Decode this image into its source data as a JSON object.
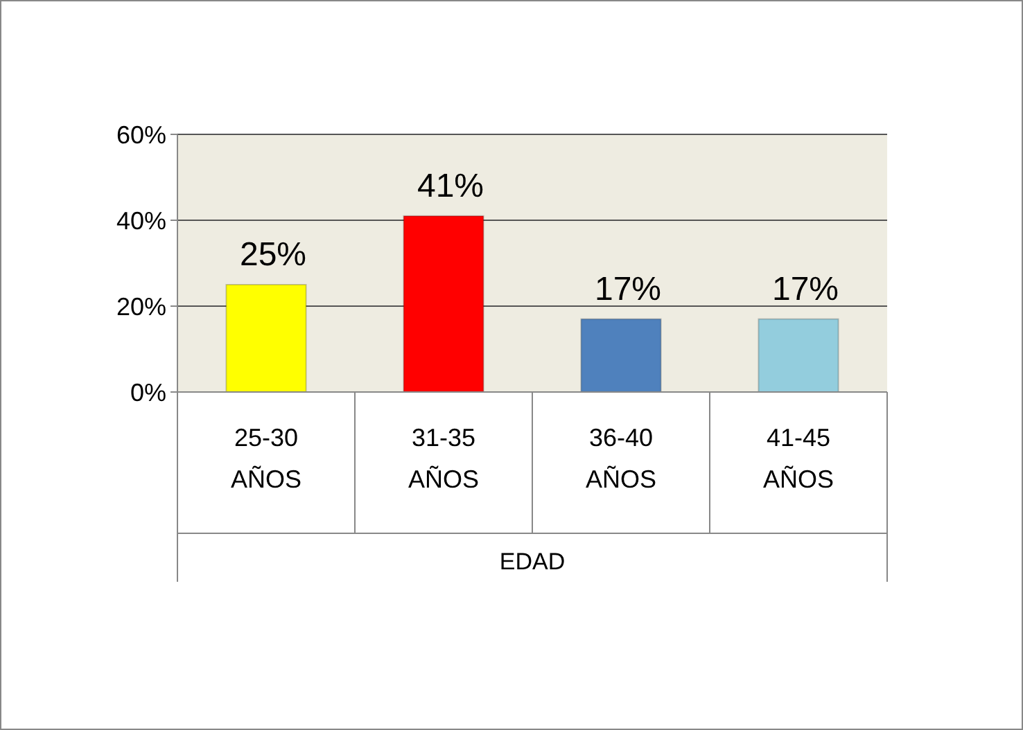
{
  "chart_data": {
    "type": "bar",
    "xlabel": "EDAD",
    "categories": [
      "25-30 AÑOS",
      "31-35 AÑOS",
      "36-40 AÑOS",
      "41-45 AÑOS"
    ],
    "values": [
      25,
      41,
      17,
      17
    ],
    "colors": [
      "#ffff00",
      "#ff0000",
      "#4f81bd",
      "#93cddd"
    ],
    "value_labels": [
      "25%",
      "41%",
      "17%",
      "17%"
    ],
    "ylim": [
      0,
      60
    ],
    "yticks": [
      {
        "value": 0,
        "label": "0%"
      },
      {
        "value": 20,
        "label": "20%"
      },
      {
        "value": 40,
        "label": "40%"
      },
      {
        "value": 60,
        "label": "60%"
      }
    ],
    "grid": "y"
  }
}
